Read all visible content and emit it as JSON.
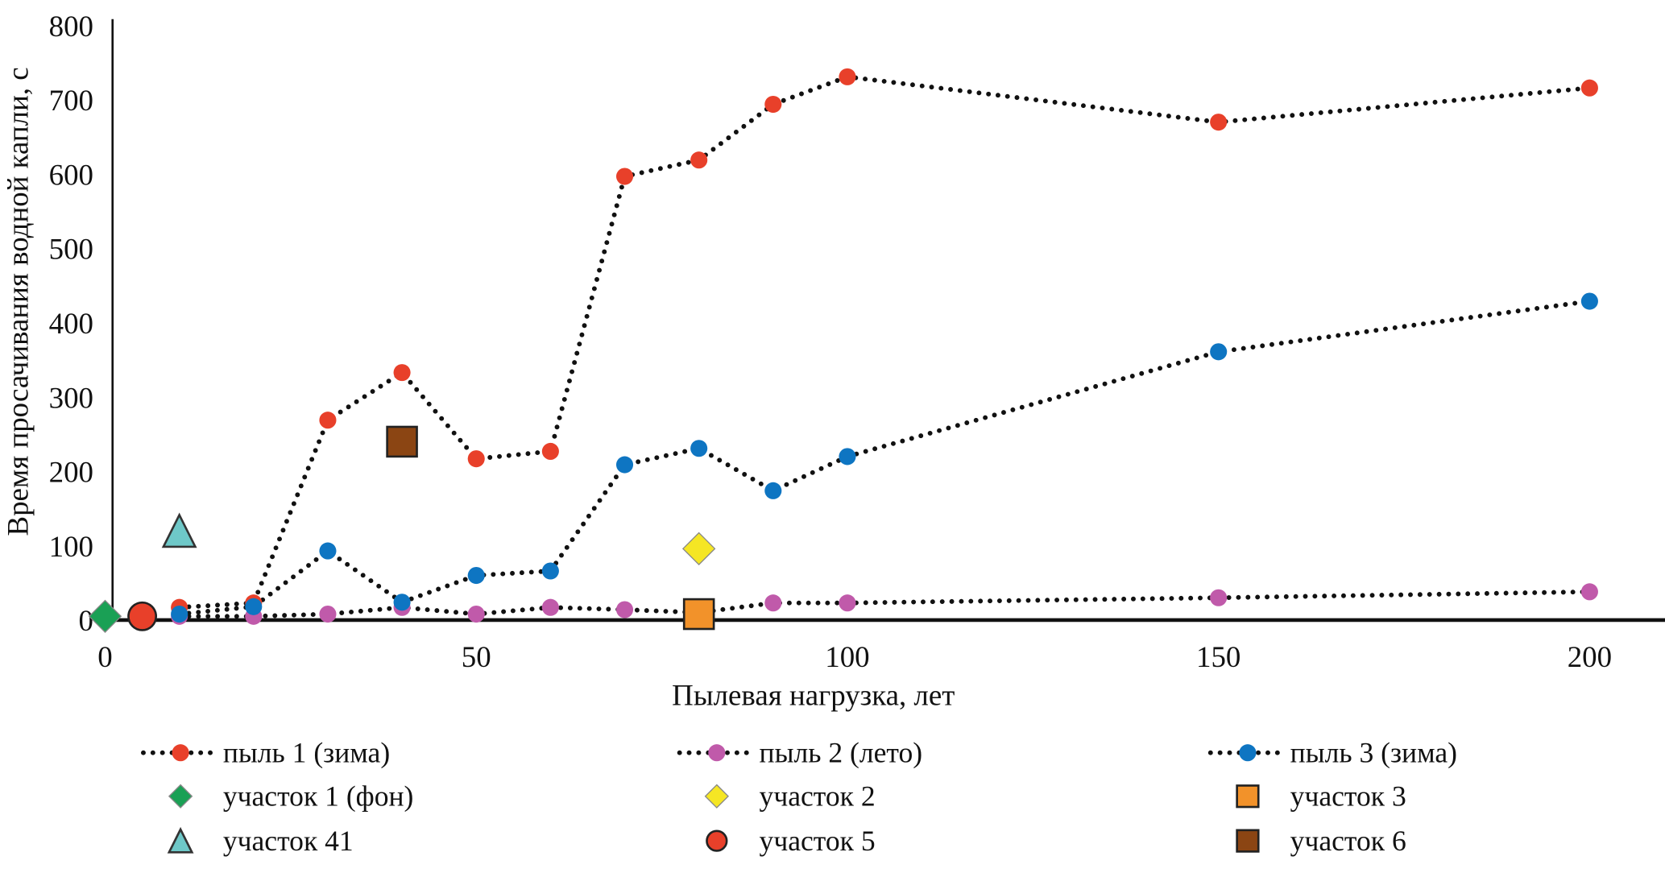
{
  "chart_data": {
    "type": "scatter",
    "title": "",
    "xlabel": "Пылевая нагрузка, лет",
    "ylabel": "Время просачивания водной капли, с",
    "xlim": [
      0,
      200
    ],
    "ylim": [
      0,
      800
    ],
    "xticks": [
      0,
      50,
      100,
      150,
      200
    ],
    "yticks": [
      0,
      100,
      200,
      300,
      400,
      500,
      600,
      700,
      800
    ],
    "grid": false,
    "legend_placement": "bottom",
    "series": [
      {
        "name": "пыль 1 (зима)",
        "kind": "line",
        "marker": "circle",
        "color": "#e8402a",
        "x": [
          10,
          20,
          30,
          40,
          50,
          60,
          70,
          80,
          90,
          100,
          150,
          200
        ],
        "y": [
          17,
          23,
          269,
          333,
          217,
          227,
          597,
          619,
          694,
          731,
          670,
          716
        ]
      },
      {
        "name": "пыль 2 (лето)",
        "kind": "line",
        "marker": "circle",
        "color": "#c05aaa",
        "x": [
          10,
          20,
          30,
          40,
          50,
          60,
          70,
          80,
          90,
          100,
          150,
          200
        ],
        "y": [
          5,
          5,
          8,
          17,
          8,
          17,
          14,
          10,
          23,
          23,
          30,
          38
        ]
      },
      {
        "name": "пыль 3 (зима)",
        "kind": "line",
        "marker": "circle",
        "color": "#0e75c2",
        "x": [
          10,
          20,
          30,
          40,
          50,
          60,
          70,
          80,
          90,
          100,
          150,
          200
        ],
        "y": [
          8,
          18,
          93,
          24,
          60,
          66,
          209,
          231,
          174,
          220,
          361,
          429
        ]
      },
      {
        "name": "участок 1 (фон)",
        "kind": "point",
        "marker": "diamond",
        "color": "#1aa055",
        "x": [
          0
        ],
        "y": [
          5
        ]
      },
      {
        "name": "участок 2",
        "kind": "point",
        "marker": "diamond",
        "color": "#f5e624",
        "x": [
          80
        ],
        "y": [
          96
        ]
      },
      {
        "name": "участок 3",
        "kind": "point",
        "marker": "square",
        "color": "#f2922a",
        "x": [
          80
        ],
        "y": [
          8
        ]
      },
      {
        "name": "участок 41",
        "kind": "point",
        "marker": "triangle",
        "color": "#6ec8c8",
        "x": [
          10
        ],
        "y": [
          120
        ]
      },
      {
        "name": "участок 5",
        "kind": "point",
        "marker": "bigcircle",
        "color": "#e8402a",
        "x": [
          5
        ],
        "y": [
          5
        ]
      },
      {
        "name": "участок 6",
        "kind": "point",
        "marker": "square",
        "color": "#8b4513",
        "x": [
          40
        ],
        "y": [
          240
        ]
      }
    ]
  }
}
